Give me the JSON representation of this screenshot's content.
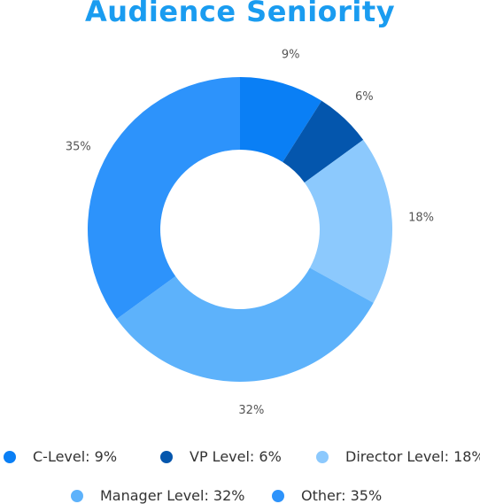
{
  "chart_data": {
    "type": "pie",
    "variant": "donut",
    "title": "Audience Seniority",
    "slices": [
      {
        "label": "C-Level",
        "value": 9,
        "value_label": "9%",
        "legend_label": "C-Level: 9%",
        "color": "#0a7ff5"
      },
      {
        "label": "VP Level",
        "value": 6,
        "value_label": "6%",
        "legend_label": "VP Level: 6%",
        "color": "#0456ad"
      },
      {
        "label": "Director Level",
        "value": 18,
        "value_label": "18%",
        "legend_label": "Director Level: 18%",
        "color": "#8cc9fd"
      },
      {
        "label": "Manager Level",
        "value": 32,
        "value_label": "32%",
        "legend_label": "Manager Level: 32%",
        "color": "#5db2fb"
      },
      {
        "label": "Other",
        "value": 35,
        "value_label": "35%",
        "legend_label": "Other: 35%",
        "color": "#2d93fb"
      }
    ],
    "legend_position": "bottom"
  }
}
